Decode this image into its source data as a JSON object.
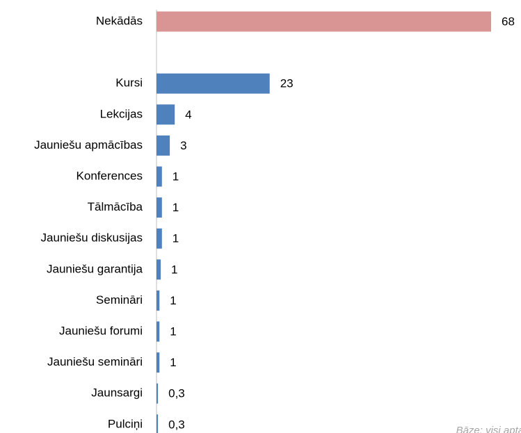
{
  "chart_data": {
    "type": "bar",
    "orientation": "horizontal",
    "categories": [
      "Nekādās",
      null,
      "Kursi",
      "Lekcijas",
      "Jauniešu apmācības",
      "Konferences",
      "Tālmācība",
      "Jauniešu diskusijas",
      "Jauniešu garantija",
      "Semināri",
      "Jauniešu forumi",
      "Jauniešu semināri",
      "Jaunsargi",
      "Pulciņi"
    ],
    "values": [
      68,
      null,
      23,
      3.7,
      2.7,
      1.1,
      1.1,
      1.1,
      0.85,
      0.6,
      0.6,
      0.6,
      0.3,
      0.3
    ],
    "value_labels": [
      "68",
      null,
      "23",
      "4",
      "3",
      "1",
      "1",
      "1",
      "1",
      "1",
      "1",
      "1",
      "0,3",
      "0,3"
    ],
    "colors": [
      "#d99594",
      null,
      "#4f81bd",
      "#4f81bd",
      "#4f81bd",
      "#4f81bd",
      "#4f81bd",
      "#4f81bd",
      "#4f81bd",
      "#4f81bd",
      "#4f81bd",
      "#4f81bd",
      "#4f81bd",
      "#4f81bd"
    ],
    "xlim": [
      0,
      68
    ],
    "note": "Bāze: visi aptaujātie"
  }
}
